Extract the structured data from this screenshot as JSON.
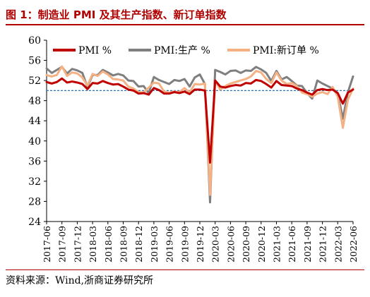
{
  "header": {
    "title": "图 1：制造业 PMI 及其生产指数、新订单指数"
  },
  "footer": {
    "source": "资料来源：Wind,浙商证券研究所"
  },
  "colors": {
    "pmi": "#c00000",
    "production": "#7f7f7f",
    "new_orders": "#f4b183",
    "reference": "#2e75b6",
    "title": "#b00000"
  },
  "chart_data": {
    "type": "line",
    "title": "",
    "xlabel": "",
    "ylabel": "",
    "ylim": [
      24,
      60
    ],
    "yticks": [
      24,
      28,
      32,
      36,
      40,
      44,
      48,
      52,
      56,
      60
    ],
    "grid": false,
    "legend_position": "top",
    "reference_line": 50,
    "x_tick_labels": [
      "2017-06",
      "2017-09",
      "2017-12",
      "2018-03",
      "2018-06",
      "2018-09",
      "2018-12",
      "2019-03",
      "2019-06",
      "2019-09",
      "2019-12",
      "2020-03",
      "2020-06",
      "2020-09",
      "2020-12",
      "2021-03",
      "2021-06",
      "2021-09",
      "2021-12",
      "2022-03",
      "2022-06"
    ],
    "x": [
      "2017-06",
      "2017-07",
      "2017-08",
      "2017-09",
      "2017-10",
      "2017-11",
      "2017-12",
      "2018-01",
      "2018-02",
      "2018-03",
      "2018-04",
      "2018-05",
      "2018-06",
      "2018-07",
      "2018-08",
      "2018-09",
      "2018-10",
      "2018-11",
      "2018-12",
      "2019-01",
      "2019-02",
      "2019-03",
      "2019-04",
      "2019-05",
      "2019-06",
      "2019-07",
      "2019-08",
      "2019-09",
      "2019-10",
      "2019-11",
      "2019-12",
      "2020-01",
      "2020-02",
      "2020-03",
      "2020-04",
      "2020-05",
      "2020-06",
      "2020-07",
      "2020-08",
      "2020-09",
      "2020-10",
      "2020-11",
      "2020-12",
      "2021-01",
      "2021-02",
      "2021-03",
      "2021-04",
      "2021-05",
      "2021-06",
      "2021-07",
      "2021-08",
      "2021-09",
      "2021-10",
      "2021-11",
      "2021-12",
      "2022-01",
      "2022-02",
      "2022-03",
      "2022-04",
      "2022-05",
      "2022-06"
    ],
    "series": [
      {
        "name": "PMI %",
        "key": "pmi",
        "values": [
          51.7,
          51.4,
          51.7,
          52.4,
          51.6,
          51.8,
          51.6,
          51.3,
          50.3,
          51.5,
          51.4,
          51.9,
          51.5,
          51.2,
          51.3,
          50.8,
          50.2,
          50.0,
          49.4,
          49.5,
          49.2,
          50.5,
          50.1,
          49.4,
          49.4,
          49.7,
          49.5,
          49.8,
          49.3,
          50.2,
          50.2,
          50.0,
          35.7,
          52.0,
          50.8,
          50.6,
          50.9,
          51.1,
          51.0,
          51.5,
          51.4,
          52.1,
          51.9,
          51.3,
          50.6,
          51.9,
          51.1,
          51.0,
          50.9,
          50.4,
          50.1,
          49.6,
          49.2,
          50.1,
          50.3,
          50.1,
          50.2,
          49.5,
          47.4,
          49.6,
          50.2
        ]
      },
      {
        "name": "PMI:生产 %",
        "key": "production",
        "values": [
          54.4,
          53.5,
          54.1,
          54.7,
          53.4,
          54.3,
          54.0,
          53.5,
          50.7,
          53.1,
          53.1,
          54.1,
          53.6,
          53.0,
          53.3,
          53.0,
          52.0,
          51.9,
          50.8,
          50.9,
          49.5,
          52.7,
          52.1,
          51.7,
          51.3,
          52.1,
          51.9,
          52.3,
          50.8,
          52.6,
          53.2,
          51.3,
          27.8,
          54.1,
          53.7,
          53.2,
          53.9,
          54.0,
          53.5,
          54.0,
          53.9,
          54.7,
          54.2,
          53.5,
          51.9,
          53.9,
          52.2,
          52.7,
          51.9,
          51.0,
          50.9,
          49.5,
          48.4,
          52.0,
          51.4,
          50.9,
          50.4,
          49.5,
          44.4,
          49.7,
          52.8
        ]
      },
      {
        "name": "PMI:新订单 %",
        "key": "new_orders",
        "values": [
          53.1,
          52.8,
          53.1,
          54.8,
          52.9,
          53.6,
          53.4,
          52.6,
          51.0,
          53.3,
          52.9,
          53.8,
          53.2,
          52.3,
          52.2,
          52.0,
          50.8,
          50.4,
          49.7,
          49.6,
          50.6,
          51.6,
          51.4,
          49.8,
          49.6,
          49.8,
          49.7,
          50.5,
          49.6,
          51.3,
          51.2,
          51.4,
          29.3,
          52.0,
          50.2,
          50.9,
          51.4,
          51.7,
          52.0,
          52.3,
          52.8,
          53.9,
          53.6,
          52.3,
          51.5,
          53.6,
          52.0,
          51.3,
          51.5,
          50.9,
          49.6,
          49.3,
          48.8,
          49.4,
          49.7,
          49.3,
          50.7,
          48.8,
          42.6,
          48.2,
          50.4
        ]
      }
    ]
  }
}
